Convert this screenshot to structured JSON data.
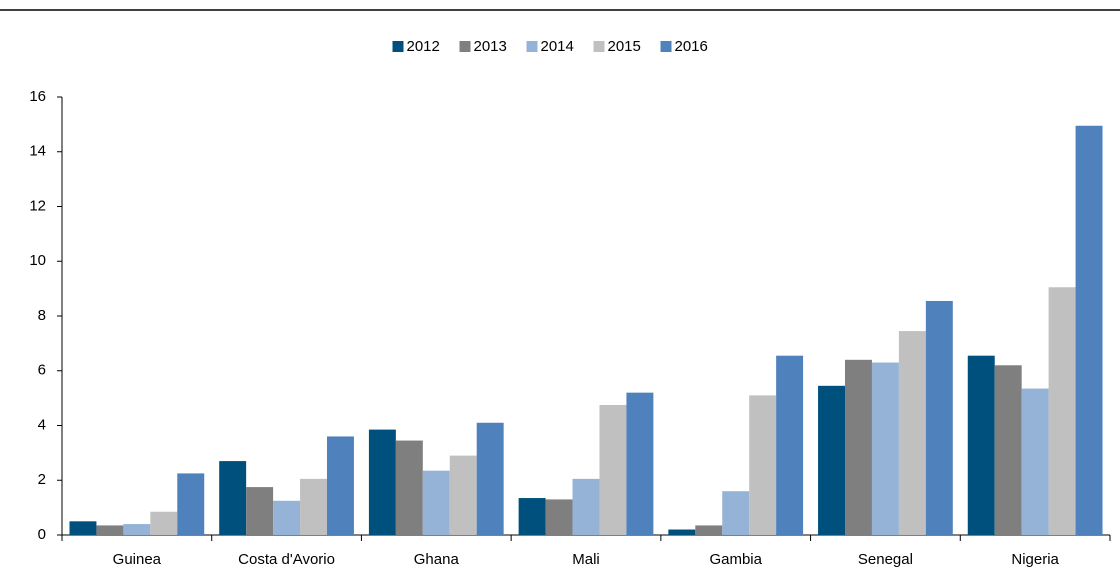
{
  "chart_data": {
    "type": "bar",
    "categories": [
      "Guinea",
      "Costa d'Avorio",
      "Ghana",
      "Mali",
      "Gambia",
      "Senegal",
      "Nigeria"
    ],
    "series": [
      {
        "name": "2012",
        "color": "#00507d",
        "values": [
          0.5,
          2.7,
          3.85,
          1.35,
          0.2,
          5.45,
          6.55
        ]
      },
      {
        "name": "2013",
        "color": "#7f7f7f",
        "values": [
          0.35,
          1.75,
          3.45,
          1.3,
          0.35,
          6.4,
          6.2
        ]
      },
      {
        "name": "2014",
        "color": "#95b3d7",
        "values": [
          0.4,
          1.25,
          2.35,
          2.05,
          1.6,
          6.3,
          5.35
        ]
      },
      {
        "name": "2015",
        "color": "#c0c0c0",
        "values": [
          0.85,
          2.05,
          2.9,
          4.75,
          5.1,
          7.45,
          9.05
        ]
      },
      {
        "name": "2016",
        "color": "#4f81bd",
        "values": [
          2.25,
          3.6,
          4.1,
          5.2,
          6.55,
          8.55,
          14.95
        ]
      }
    ],
    "ylim": [
      0,
      16
    ],
    "yticks": [
      0,
      2,
      4,
      6,
      8,
      10,
      12,
      14,
      16
    ],
    "grid": false,
    "legend": "top"
  }
}
